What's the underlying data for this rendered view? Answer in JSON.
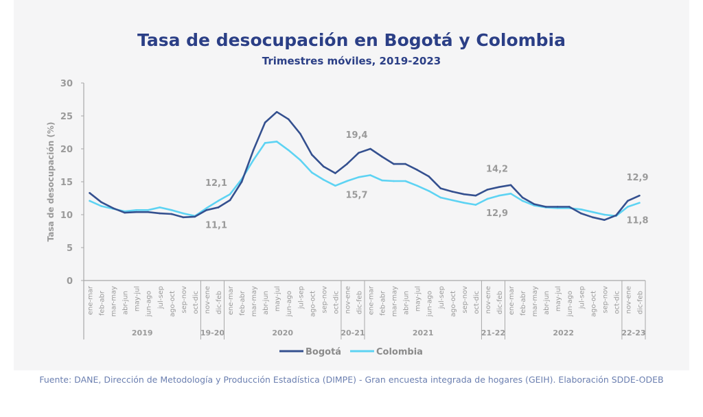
{
  "chart_data": {
    "type": "line",
    "title": "Tasa de desocupación en Bogotá y Colombia",
    "subtitle": "Trimestres móviles, 2019-2023",
    "xlabel": "",
    "ylabel": "Tasa de desocupación (%)",
    "ylim": [
      0,
      30
    ],
    "yticks": [
      0,
      5,
      10,
      15,
      20,
      25,
      30
    ],
    "grid": false,
    "legend_position": "bottom-center",
    "categories": [
      "ene-mar",
      "feb-abr",
      "mar-may",
      "abr-jun",
      "may-jul",
      "jun-ago",
      "jul-sep",
      "ago-oct",
      "sep-nov",
      "oct-dic",
      "nov-ene",
      "dic-feb",
      "ene-mar",
      "feb-abr",
      "mar-may",
      "abr-jun",
      "may-jul",
      "jun-ago",
      "jul-sep",
      "ago-oct",
      "sep-nov",
      "oct-dic",
      "nov-ene",
      "dic-feb",
      "ene-mar",
      "feb-abr",
      "mar-may",
      "abr-jun",
      "may-jul",
      "jun-ago",
      "jul-sep",
      "ago-oct",
      "sep-nov",
      "oct-dic",
      "nov-ene",
      "dic-feb",
      "ene-mar",
      "feb-abr",
      "mar-may",
      "abr-jun",
      "may-jul",
      "jun-ago",
      "jul-sep",
      "ago-oct",
      "sep-nov",
      "oct-dic",
      "nov-ene",
      "dic-feb"
    ],
    "groups": [
      {
        "label": "2019",
        "count": 10
      },
      {
        "label": "19-20",
        "count": 2
      },
      {
        "label": "2020",
        "count": 10
      },
      {
        "label": "20-21",
        "count": 2
      },
      {
        "label": "2021",
        "count": 10
      },
      {
        "label": "21-22",
        "count": 2
      },
      {
        "label": "2022",
        "count": 10
      },
      {
        "label": "22-23",
        "count": 2
      }
    ],
    "series": [
      {
        "name": "Bogotá",
        "color": "#34508f",
        "values": [
          13.3,
          11.9,
          11.0,
          10.3,
          10.4,
          10.4,
          10.2,
          10.1,
          9.6,
          9.7,
          10.7,
          11.1,
          12.2,
          15.0,
          19.8,
          24.0,
          25.6,
          24.5,
          22.3,
          19.1,
          17.3,
          16.3,
          17.7,
          19.4,
          20.0,
          18.8,
          17.7,
          17.7,
          16.8,
          15.8,
          14.0,
          13.5,
          13.1,
          12.9,
          13.8,
          14.2,
          14.5,
          12.6,
          11.6,
          11.2,
          11.2,
          11.2,
          10.2,
          9.6,
          9.2,
          9.9,
          12.1,
          12.9
        ]
      },
      {
        "name": "Colombia",
        "color": "#5dd3f3",
        "values": [
          12.1,
          11.3,
          10.9,
          10.5,
          10.7,
          10.7,
          11.1,
          10.7,
          10.2,
          9.8,
          11.0,
          12.1,
          13.1,
          15.4,
          18.3,
          20.9,
          21.1,
          19.8,
          18.3,
          16.4,
          15.3,
          14.4,
          15.1,
          15.7,
          16.0,
          15.2,
          15.1,
          15.1,
          14.4,
          13.6,
          12.6,
          12.2,
          11.8,
          11.5,
          12.4,
          12.9,
          13.2,
          12.1,
          11.4,
          11.1,
          11.0,
          11.0,
          10.8,
          10.4,
          10.0,
          9.8,
          11.2,
          11.8
        ]
      }
    ],
    "annotations": [
      {
        "series": "Colombia",
        "index": 11,
        "text": "12,1",
        "position": "above"
      },
      {
        "series": "Bogotá",
        "index": 11,
        "text": "11,1",
        "position": "below"
      },
      {
        "series": "Bogotá",
        "index": 23,
        "text": "19,4",
        "position": "above"
      },
      {
        "series": "Colombia",
        "index": 23,
        "text": "15,7",
        "position": "below"
      },
      {
        "series": "Bogotá",
        "index": 35,
        "text": "14,2",
        "position": "above"
      },
      {
        "series": "Colombia",
        "index": 35,
        "text": "12,9",
        "position": "below"
      },
      {
        "series": "Bogotá",
        "index": 47,
        "text": "12,9",
        "position": "above"
      },
      {
        "series": "Colombia",
        "index": 47,
        "text": "11,8",
        "position": "below"
      }
    ]
  },
  "source": "Fuente: DANE, Dirección de Metodología y Producción Estadística (DIMPE) - Gran encuesta integrada de hogares (GEIH). Elaboración SDDE-ODEB",
  "colors": {
    "title": "#2b3f86",
    "axis": "#a8a8a8",
    "text": "#9a9a9a"
  }
}
